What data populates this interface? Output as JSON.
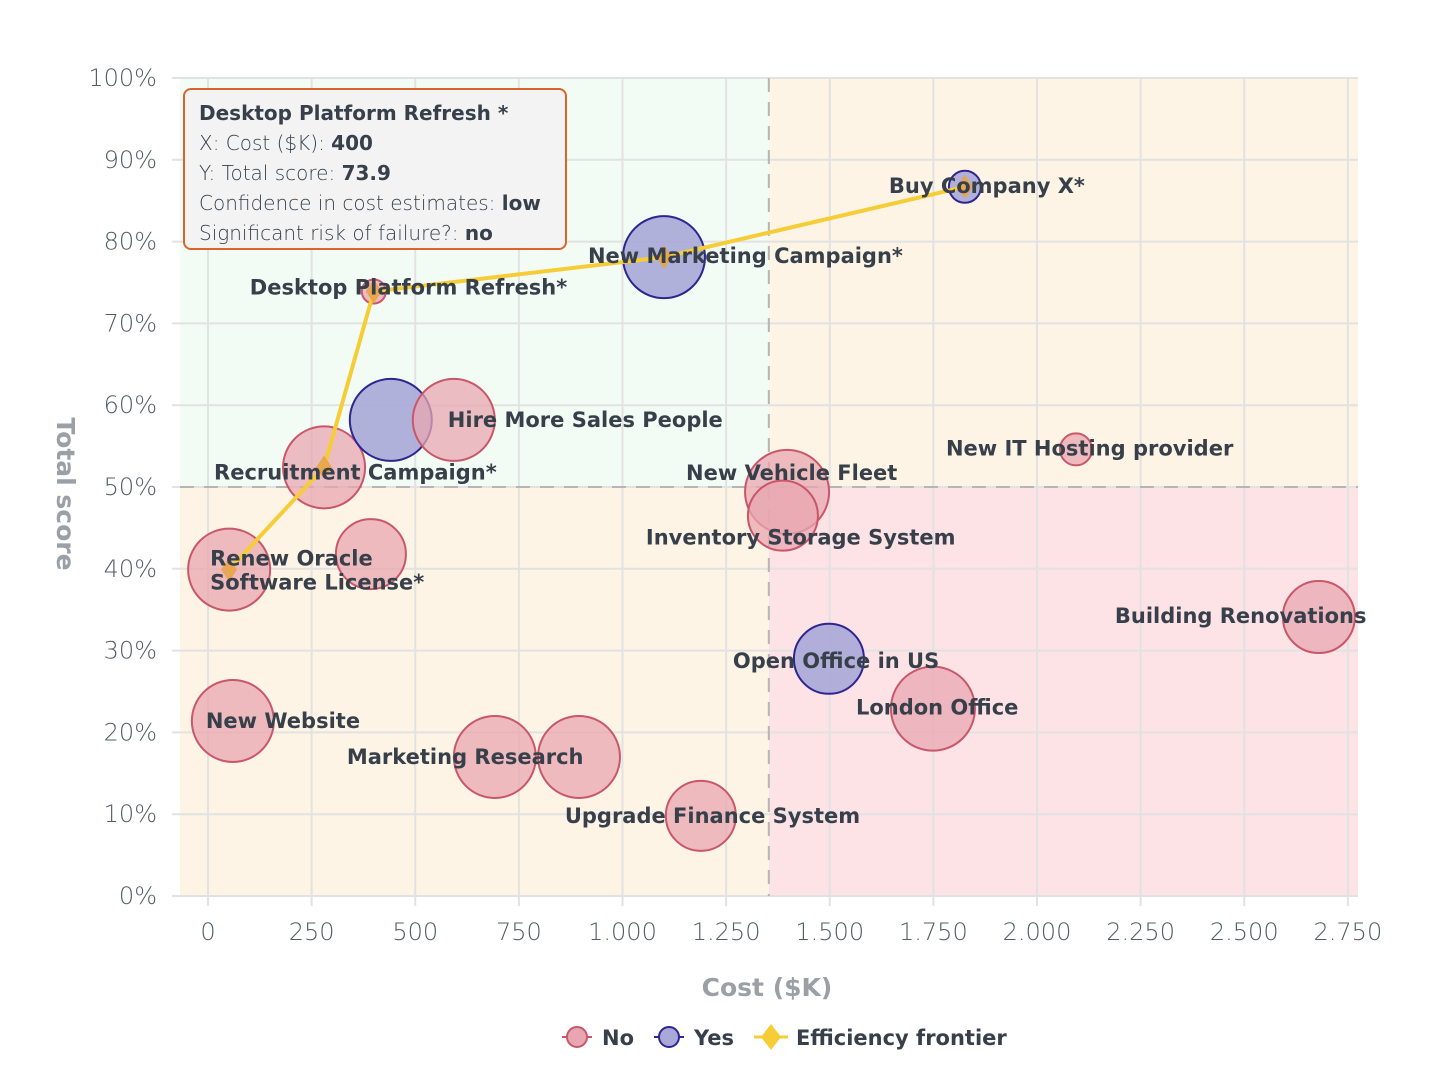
{
  "chart_data": {
    "type": "scatter",
    "subtype": "bubble",
    "xlabel": "Cost ($K)",
    "ylabel": "Total score",
    "xlim": [
      -60,
      2790
    ],
    "ylim": [
      0,
      100
    ],
    "xticks": [
      0,
      250,
      500,
      750,
      1000,
      1250,
      1500,
      1750,
      2000,
      2250,
      2500,
      2750
    ],
    "xtick_labels": [
      "0",
      "250",
      "500",
      "750",
      "1.000",
      "1.250",
      "1.500",
      "1.750",
      "2.000",
      "2.250",
      "2.500",
      "2.750"
    ],
    "yticks": [
      0,
      10,
      20,
      30,
      40,
      50,
      60,
      70,
      80,
      90,
      100
    ],
    "ytick_labels": [
      "0%",
      "10%",
      "20%",
      "30%",
      "40%",
      "50%",
      "60%",
      "70%",
      "80%",
      "90%",
      "100%"
    ],
    "grid": true,
    "quadrant_split": {
      "x": 1353,
      "y": 50
    },
    "quadrant_colors": {
      "top_left": "#f3fcf4",
      "top_right": "#fdf4e5",
      "bottom_left": "#fdf4e5",
      "bottom_right": "#fde3e6"
    },
    "series_colors": {
      "No": "#e8a7b0",
      "No_stroke": "#c9576a",
      "Yes": "#a9a8d8",
      "Yes_stroke": "#2e2590",
      "Efficiency frontier": "#f6cd36"
    },
    "points": [
      {
        "label": "Desktop Platform Refresh*",
        "x": 400,
        "y": 73.9,
        "size": 12,
        "group": "No"
      },
      {
        "label": "New Marketing Campaign*",
        "x": 1100,
        "y": 78.1,
        "size": 41,
        "group": "Yes"
      },
      {
        "label": "Buy Company X*",
        "x": 1826,
        "y": 86.7,
        "size": 16,
        "group": "Yes"
      },
      {
        "label": "Recruitment Campaign*",
        "x": 280,
        "y": 52.4,
        "size": 41,
        "group": "No"
      },
      {
        "label": "",
        "x": 441,
        "y": 58.2,
        "size": 41,
        "group": "Yes"
      },
      {
        "label": "Hire More Sales People",
        "x": 593,
        "y": 58.2,
        "size": 41,
        "group": "No"
      },
      {
        "label": "Renew Oracle\nSoftware License*",
        "x": 51,
        "y": 39.9,
        "size": 41,
        "group": "No"
      },
      {
        "label": "",
        "x": 393,
        "y": 41.8,
        "size": 35,
        "group": "No"
      },
      {
        "label": "New Website",
        "x": 60,
        "y": 21.4,
        "size": 41,
        "group": "No"
      },
      {
        "label": "Marketing Research",
        "x": 692,
        "y": 17.0,
        "size": 41,
        "group": "No"
      },
      {
        "label": "",
        "x": 895,
        "y": 17.0,
        "size": 41,
        "group": "No"
      },
      {
        "label": "Upgrade Finance System",
        "x": 1189,
        "y": 9.8,
        "size": 35,
        "group": "No"
      },
      {
        "label": "New Vehicle Fleet",
        "x": 1397,
        "y": 49.4,
        "size": 42,
        "group": "No"
      },
      {
        "label": "Inventory Storage System",
        "x": 1387,
        "y": 46.5,
        "size": 35,
        "group": "No"
      },
      {
        "label": "New IT Hosting provider",
        "x": 2094,
        "y": 54.6,
        "size": 16,
        "group": "No"
      },
      {
        "label": "Building Renovations",
        "x": 2680,
        "y": 34.1,
        "size": 36,
        "group": "No"
      },
      {
        "label": "Open Office in US",
        "x": 1498,
        "y": 29.0,
        "size": 35,
        "group": "Yes"
      },
      {
        "label": "London Office",
        "x": 1749,
        "y": 22.9,
        "size": 42,
        "group": "No"
      }
    ],
    "frontier": [
      {
        "x": 51,
        "y": 39.9
      },
      {
        "x": 280,
        "y": 52.4
      },
      {
        "x": 400,
        "y": 73.9
      },
      {
        "x": 1100,
        "y": 78.1
      },
      {
        "x": 1826,
        "y": 86.7
      }
    ],
    "legend": {
      "position": "bottom",
      "entries": [
        "No",
        "Yes",
        "Efficiency frontier"
      ]
    }
  },
  "tooltip": {
    "title": "Desktop Platform Refresh *",
    "x_label": "X: Cost ($K): ",
    "x_value": "400",
    "y_label": "Y: Total score: ",
    "y_value": "73.9",
    "conf_label": "Confidence in cost estimates: ",
    "conf_value": "low",
    "risk_label": "Significant risk of failure?: ",
    "risk_value": "no"
  }
}
